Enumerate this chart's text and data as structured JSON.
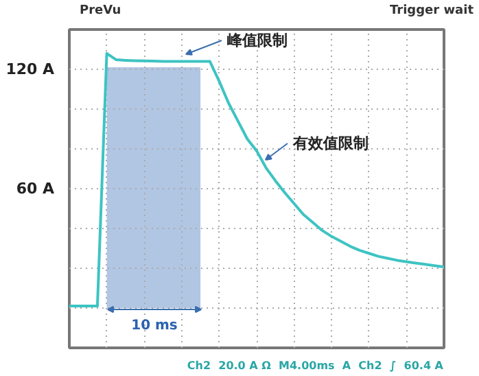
{
  "chart_data": {
    "type": "line",
    "categories": [
      null,
      null,
      null,
      null,
      null,
      null,
      null,
      null,
      null,
      null,
      null,
      null,
      null,
      null,
      null,
      null,
      null,
      null,
      null,
      null,
      null,
      null,
      null,
      null,
      null,
      null,
      null,
      null,
      null,
      null,
      null,
      null,
      null,
      null,
      null,
      null,
      null,
      null,
      null,
      null,
      null
    ],
    "series": [
      {
        "type": "area",
        "color": "#a9c0e0",
        "values": [
          null,
          null,
          null,
          null,
          121,
          121,
          121,
          121,
          121,
          121,
          121,
          121,
          121,
          121,
          121,
          null,
          null,
          null,
          null,
          null,
          null,
          null,
          null,
          null,
          null,
          null,
          null,
          null,
          null,
          null,
          null,
          null,
          null,
          null,
          null,
          null,
          null,
          null,
          null,
          null,
          null
        ]
      },
      {
        "color": "#3ec3c3",
        "values": [
          1,
          1,
          1,
          1,
          128,
          124.8,
          124.5,
          124.3,
          124.2,
          124.1,
          124,
          124,
          124,
          124,
          124,
          124,
          114,
          103,
          94,
          85,
          79,
          70.5,
          64,
          58,
          52.5,
          47,
          43,
          39,
          36,
          33.5,
          31,
          29,
          27.5,
          26,
          25,
          24,
          23.3,
          22.6,
          22,
          21.3,
          20.7
        ]
      }
    ],
    "ylim": [
      -20,
      140
    ],
    "yticks": [
      {
        "value": -20,
        "label": null
      },
      {
        "value": 0,
        "label": null
      },
      {
        "value": 20,
        "label": null
      },
      {
        "value": 40,
        "label": null
      },
      {
        "value": 60,
        "label": "60 A"
      },
      {
        "value": 80,
        "label": null
      },
      {
        "value": 100,
        "label": null
      },
      {
        "value": 120,
        "label": "120 A"
      },
      {
        "value": 140,
        "label": null
      }
    ],
    "grid": true,
    "line_style": "solid",
    "marker": "none",
    "annotations": [
      "峰值限制",
      "有效值限制",
      "10 ms",
      "PreVu",
      "Trigger wait",
      "Ch2  20.0 A Ω  M4.00ms  A  Ch2  ∫  60.4 A"
    ]
  }
}
